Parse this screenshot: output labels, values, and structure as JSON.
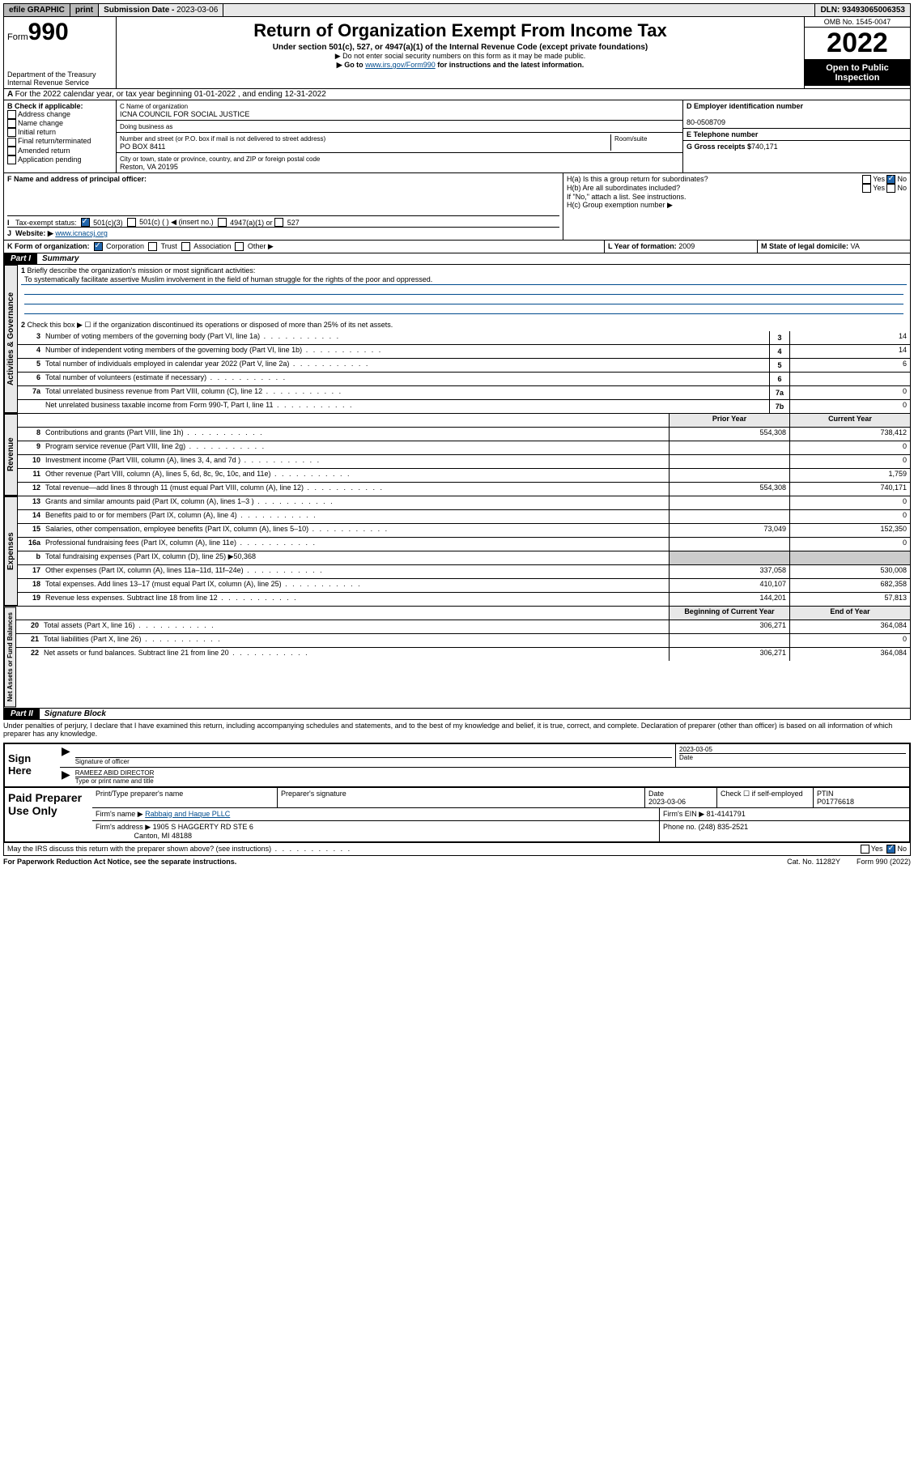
{
  "topbar": {
    "efile": "efile GRAPHIC",
    "print": "print",
    "sub_label": "Submission Date - ",
    "sub_date": "2023-03-06",
    "dln_label": "DLN: ",
    "dln": "93493065006353"
  },
  "header": {
    "form_prefix": "Form",
    "form_num": "990",
    "dept": "Department of the Treasury",
    "irs": "Internal Revenue Service",
    "title": "Return of Organization Exempt From Income Tax",
    "subtitle": "Under section 501(c), 527, or 4947(a)(1) of the Internal Revenue Code (except private foundations)",
    "note1": "▶ Do not enter social security numbers on this form as it may be made public.",
    "note2_pre": "▶ Go to ",
    "note2_link": "www.irs.gov/Form990",
    "note2_post": " for instructions and the latest information.",
    "omb": "OMB No. 1545-0047",
    "year": "2022",
    "open": "Open to Public Inspection"
  },
  "a": {
    "text": "For the 2022 calendar year, or tax year beginning 01-01-2022   , and ending 12-31-2022"
  },
  "b": {
    "label": "B Check if applicable:",
    "opts": [
      "Address change",
      "Name change",
      "Initial return",
      "Final return/terminated",
      "Amended return",
      "Application pending"
    ]
  },
  "c": {
    "name_lbl": "C Name of organization",
    "name": "ICNA COUNCIL FOR SOCIAL JUSTICE",
    "dba_lbl": "Doing business as",
    "addr_lbl": "Number and street (or P.O. box if mail is not delivered to street address)",
    "room_lbl": "Room/suite",
    "addr": "PO BOX 8411",
    "city_lbl": "City or town, state or province, country, and ZIP or foreign postal code",
    "city": "Reston, VA  20195"
  },
  "d": {
    "lbl": "D Employer identification number",
    "val": "80-0508709"
  },
  "e": {
    "lbl": "E Telephone number",
    "val": ""
  },
  "g": {
    "lbl": "G Gross receipts $",
    "val": "740,171"
  },
  "f": {
    "lbl": "F  Name and address of principal officer:"
  },
  "h": {
    "a": "H(a)  Is this a group return for subordinates?",
    "b": "H(b)  Are all subordinates included?",
    "b_note": "If \"No,\" attach a list. See instructions.",
    "c": "H(c)  Group exemption number ▶",
    "yes": "Yes",
    "no": "No"
  },
  "i": {
    "lbl": "Tax-exempt status:",
    "o1": "501(c)(3)",
    "o2": "501(c) (   ) ◀ (insert no.)",
    "o3": "4947(a)(1) or",
    "o4": "527"
  },
  "j": {
    "lbl": "Website: ▶",
    "val": "www.icnacsj.org"
  },
  "k": {
    "lbl": "K Form of organization:",
    "o1": "Corporation",
    "o2": "Trust",
    "o3": "Association",
    "o4": "Other ▶"
  },
  "l": {
    "lbl": "L Year of formation:",
    "val": "2009"
  },
  "m": {
    "lbl": "M State of legal domicile:",
    "val": "VA"
  },
  "part1": {
    "hdr": "Part I",
    "title": "Summary"
  },
  "summary": {
    "l1_lbl": "Briefly describe the organization's mission or most significant activities:",
    "l1_val": "To systematically facilitate assertive Muslim involvement in the field of human struggle for the rights of the poor and oppressed.",
    "l2": "Check this box ▶ ☐ if the organization discontinued its operations or disposed of more than 25% of its net assets.",
    "lines_a": [
      {
        "n": "3",
        "t": "Number of voting members of the governing body (Part VI, line 1a)",
        "b": "3",
        "v": "14"
      },
      {
        "n": "4",
        "t": "Number of independent voting members of the governing body (Part VI, line 1b)",
        "b": "4",
        "v": "14"
      },
      {
        "n": "5",
        "t": "Total number of individuals employed in calendar year 2022 (Part V, line 2a)",
        "b": "5",
        "v": "6"
      },
      {
        "n": "6",
        "t": "Total number of volunteers (estimate if necessary)",
        "b": "6",
        "v": ""
      },
      {
        "n": "7a",
        "t": "Total unrelated business revenue from Part VIII, column (C), line 12",
        "b": "7a",
        "v": "0"
      },
      {
        "n": "",
        "t": "Net unrelated business taxable income from Form 990-T, Part I, line 11",
        "b": "7b",
        "v": "0"
      }
    ],
    "hdr_prior": "Prior Year",
    "hdr_curr": "Current Year",
    "rev": [
      {
        "n": "8",
        "t": "Contributions and grants (Part VIII, line 1h)",
        "p": "554,308",
        "c": "738,412"
      },
      {
        "n": "9",
        "t": "Program service revenue (Part VIII, line 2g)",
        "p": "",
        "c": "0"
      },
      {
        "n": "10",
        "t": "Investment income (Part VIII, column (A), lines 3, 4, and 7d )",
        "p": "",
        "c": "0"
      },
      {
        "n": "11",
        "t": "Other revenue (Part VIII, column (A), lines 5, 6d, 8c, 9c, 10c, and 11e)",
        "p": "",
        "c": "1,759"
      },
      {
        "n": "12",
        "t": "Total revenue—add lines 8 through 11 (must equal Part VIII, column (A), line 12)",
        "p": "554,308",
        "c": "740,171"
      }
    ],
    "exp": [
      {
        "n": "13",
        "t": "Grants and similar amounts paid (Part IX, column (A), lines 1–3 )",
        "p": "",
        "c": "0"
      },
      {
        "n": "14",
        "t": "Benefits paid to or for members (Part IX, column (A), line 4)",
        "p": "",
        "c": "0"
      },
      {
        "n": "15",
        "t": "Salaries, other compensation, employee benefits (Part IX, column (A), lines 5–10)",
        "p": "73,049",
        "c": "152,350"
      },
      {
        "n": "16a",
        "t": "Professional fundraising fees (Part IX, column (A), line 11e)",
        "p": "",
        "c": "0"
      },
      {
        "n": "b",
        "t": "Total fundraising expenses (Part IX, column (D), line 25) ▶50,368",
        "p": "—",
        "c": "—"
      },
      {
        "n": "17",
        "t": "Other expenses (Part IX, column (A), lines 11a–11d, 11f–24e)",
        "p": "337,058",
        "c": "530,008"
      },
      {
        "n": "18",
        "t": "Total expenses. Add lines 13–17 (must equal Part IX, column (A), line 25)",
        "p": "410,107",
        "c": "682,358"
      },
      {
        "n": "19",
        "t": "Revenue less expenses. Subtract line 18 from line 12",
        "p": "144,201",
        "c": "57,813"
      }
    ],
    "hdr_beg": "Beginning of Current Year",
    "hdr_end": "End of Year",
    "net": [
      {
        "n": "20",
        "t": "Total assets (Part X, line 16)",
        "p": "306,271",
        "c": "364,084"
      },
      {
        "n": "21",
        "t": "Total liabilities (Part X, line 26)",
        "p": "",
        "c": "0"
      },
      {
        "n": "22",
        "t": "Net assets or fund balances. Subtract line 21 from line 20",
        "p": "306,271",
        "c": "364,084"
      }
    ]
  },
  "tabs": {
    "gov": "Activities & Governance",
    "rev": "Revenue",
    "exp": "Expenses",
    "net": "Net Assets or Fund Balances"
  },
  "part2": {
    "hdr": "Part II",
    "title": "Signature Block"
  },
  "decl": "Under penalties of perjury, I declare that I have examined this return, including accompanying schedules and statements, and to the best of my knowledge and belief, it is true, correct, and complete. Declaration of preparer (other than officer) is based on all information of which preparer has any knowledge.",
  "sign": {
    "here": "Sign Here",
    "sig_lbl": "Signature of officer",
    "date_lbl": "Date",
    "date": "2023-03-05",
    "name": "RAMEEZ ABID  DIRECTOR",
    "name_lbl": "Type or print name and title"
  },
  "paid": {
    "title": "Paid Preparer Use Only",
    "h1": "Print/Type preparer's name",
    "h2": "Preparer's signature",
    "h3": "Date",
    "h4": "Check ☐ if self-employed",
    "h5": "PTIN",
    "date": "2023-03-06",
    "ptin": "P01776618",
    "firm_lbl": "Firm's name    ▶",
    "firm": "Rabbaig and Haque PLLC",
    "ein_lbl": "Firm's EIN ▶",
    "ein": "81-4141791",
    "addr_lbl": "Firm's address ▶",
    "addr1": "1905 S HAGGERTY RD STE 6",
    "addr2": "Canton, MI  48188",
    "phone_lbl": "Phone no.",
    "phone": "(248) 835-2521"
  },
  "discuss": {
    "q": "May the IRS discuss this return with the preparer shown above? (see instructions)",
    "yes": "Yes",
    "no": "No"
  },
  "footer": {
    "pra": "For Paperwork Reduction Act Notice, see the separate instructions.",
    "cat": "Cat. No. 11282Y",
    "form": "Form 990 (2022)"
  }
}
